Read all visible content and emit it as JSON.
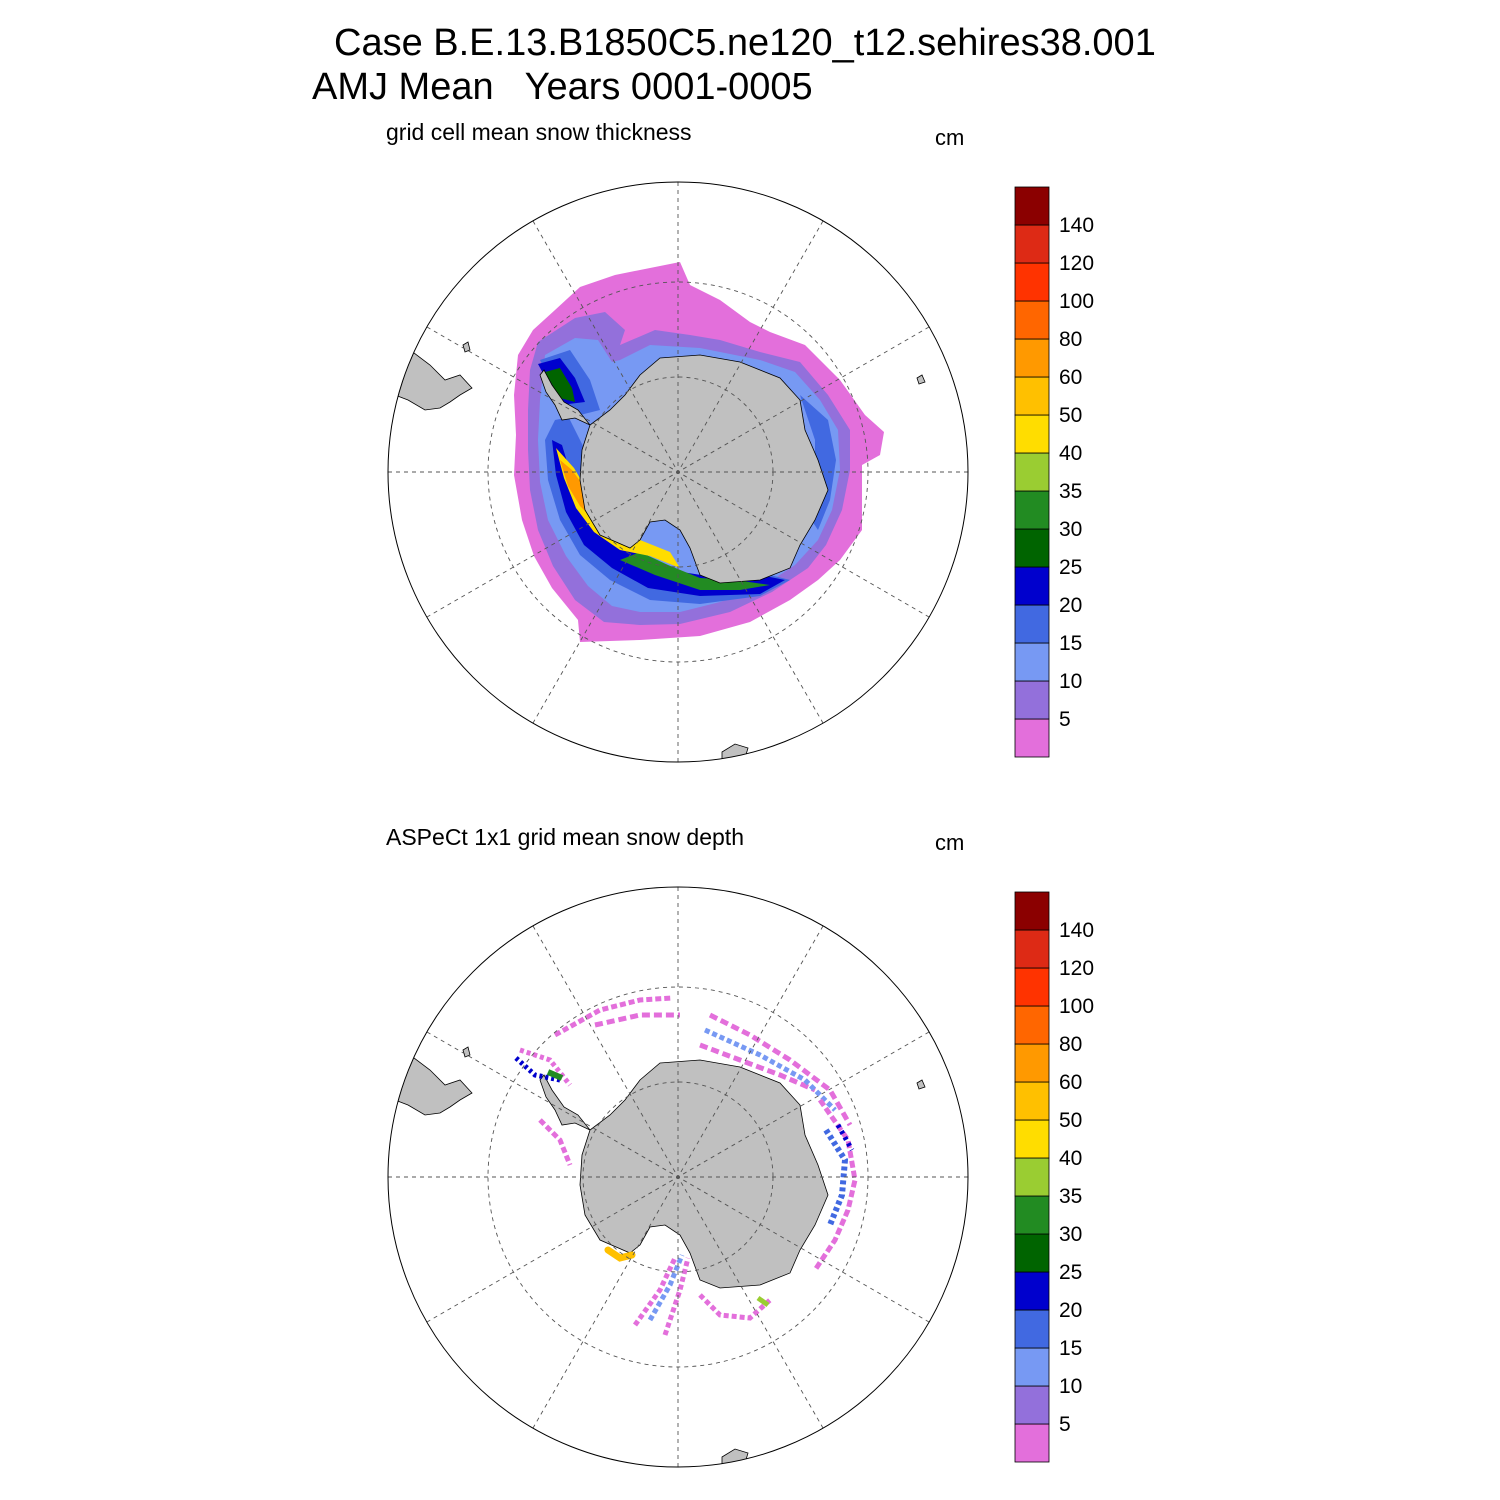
{
  "title": {
    "line1": "Case B.E.13.B1850C5.ne120_t12.sehires38.001",
    "line2": "AMJ Mean   Years 0001-0005"
  },
  "panels": [
    {
      "title": "grid cell mean snow thickness",
      "units": "cm",
      "source": "model"
    },
    {
      "title": "ASPeCt 1x1 grid mean snow depth",
      "units": "cm",
      "source": "obs"
    }
  ],
  "colorbar": {
    "labels": [
      "5",
      "10",
      "15",
      "20",
      "25",
      "30",
      "35",
      "40",
      "50",
      "60",
      "80",
      "100",
      "120",
      "140"
    ],
    "colors": [
      "#e36fdb",
      "#9370db",
      "#7799f3",
      "#4169e1",
      "#0000cd",
      "#006400",
      "#228b22",
      "#9acd32",
      "#ffdd00",
      "#ffc000",
      "#ff9900",
      "#ff6600",
      "#ff3300",
      "#dd2a15",
      "#8b0000"
    ]
  },
  "colors": {
    "land": "#c0c0c0",
    "grid": "#555555"
  },
  "icons": [
    "south-polar-map",
    "antarctica-landmass",
    "colorbar"
  ]
}
